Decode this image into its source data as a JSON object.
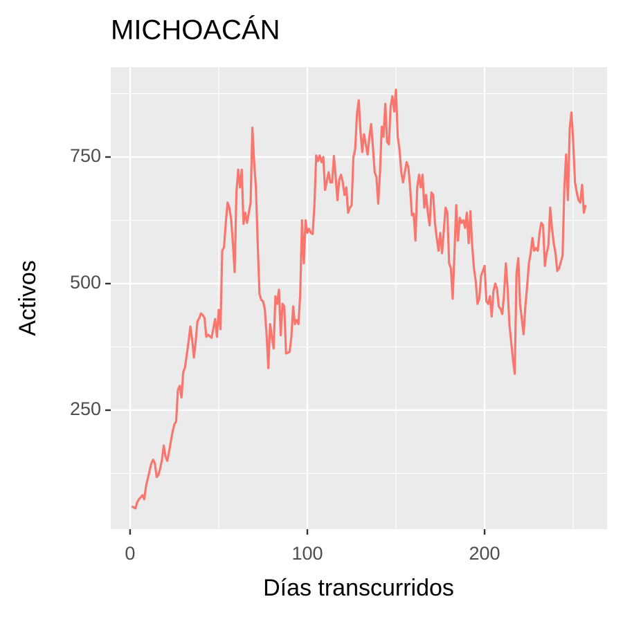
{
  "chart_data": {
    "type": "line",
    "title": "MICHOACÁN",
    "x_label": "Días transcurridos",
    "y_label": "Activos",
    "xlim": [
      -10.9,
      269.1
    ],
    "ylim": [
      15,
      927.6
    ],
    "xticks": [
      0,
      100,
      200
    ],
    "yticks": [
      250,
      500,
      750
    ],
    "x_minor_ticks": [
      50,
      150,
      250
    ],
    "y_minor_ticks": [
      125,
      375,
      625,
      875
    ],
    "grid": true,
    "x": [
      1,
      2,
      3,
      4,
      5,
      6,
      7,
      8,
      9,
      10,
      11,
      12,
      13,
      14,
      15,
      16,
      17,
      18,
      19,
      20,
      21,
      22,
      24,
      25,
      26,
      27,
      28,
      29,
      30,
      31,
      32,
      33,
      34,
      35,
      36,
      37,
      38,
      39,
      40,
      41,
      42,
      43,
      44,
      46,
      47,
      48,
      49,
      50,
      51,
      52,
      53,
      54,
      55,
      56,
      57,
      58,
      59,
      60,
      61,
      62,
      63,
      64,
      65,
      66,
      68,
      69,
      70,
      71,
      72,
      73,
      74,
      75,
      76,
      77,
      78,
      79,
      80,
      81,
      82,
      83,
      84,
      85,
      86,
      87,
      88,
      90,
      91,
      92,
      93,
      94,
      95,
      96,
      97,
      98,
      99,
      100,
      101,
      102,
      103,
      104,
      105,
      106,
      107,
      108,
      109,
      110,
      112,
      113,
      114,
      115,
      116,
      117,
      118,
      119,
      120,
      121,
      122,
      123,
      124,
      125,
      126,
      127,
      128,
      129,
      130,
      131,
      132,
      134,
      135,
      136,
      137,
      138,
      139,
      140,
      141,
      142,
      143,
      144,
      145,
      146,
      147,
      148,
      149,
      150,
      151,
      152,
      153,
      154,
      156,
      157,
      158,
      159,
      160,
      161,
      162,
      163,
      164,
      165,
      166,
      167,
      168,
      169,
      170,
      171,
      172,
      173,
      174,
      175,
      176,
      178,
      179,
      180,
      181,
      182,
      183,
      184,
      185,
      186,
      187,
      188,
      189,
      190,
      191,
      192,
      193,
      194,
      195,
      196,
      197,
      198,
      200,
      201,
      202,
      203,
      204,
      205,
      206,
      207,
      208,
      209,
      210,
      211,
      212,
      213,
      214,
      215,
      216,
      217,
      218,
      219,
      220,
      222,
      223,
      224,
      225,
      226,
      227,
      228,
      229,
      230,
      231,
      232,
      233,
      234,
      235,
      236,
      237,
      238,
      239,
      240,
      241,
      242,
      244,
      245,
      246,
      247,
      248,
      249,
      250,
      251,
      252,
      253,
      254,
      255,
      256,
      257
    ],
    "series": [
      {
        "name": "Activos",
        "color": "#F8766D",
        "values": [
          60,
          58,
          56,
          68,
          74,
          78,
          82,
          74,
          100,
          115,
          130,
          145,
          152,
          145,
          118,
          122,
          135,
          152,
          180,
          158,
          150,
          168,
          208,
          222,
          228,
          290,
          298,
          275,
          325,
          335,
          360,
          385,
          415,
          390,
          354,
          385,
          425,
          432,
          441,
          438,
          432,
          395,
          399,
          393,
          412,
          430,
          395,
          448,
          410,
          565,
          572,
          620,
          660,
          650,
          628,
          580,
          523,
          680,
          725,
          690,
          725,
          618,
          640,
          620,
          660,
          808,
          740,
          690,
          580,
          480,
          468,
          465,
          450,
          400,
          333,
          420,
          395,
          372,
          475,
          460,
          488,
          398,
          460,
          455,
          362,
          365,
          395,
          455,
          420,
          428,
          420,
          480,
          625,
          540,
          625,
          600,
          608,
          600,
          598,
          655,
          753,
          742,
          753,
          740,
          750,
          685,
          720,
          700,
          700,
          752,
          710,
          665,
          705,
          715,
          700,
          675,
          690,
          640,
          650,
          655,
          750,
          765,
          835,
          862,
          800,
          760,
          795,
          755,
          790,
          815,
          770,
          720,
          710,
          658,
          720,
          810,
          790,
          855,
          780,
          775,
          850,
          870,
          840,
          883,
          790,
          765,
          720,
          700,
          740,
          730,
          690,
          635,
          638,
          585,
          690,
          715,
          690,
          715,
          650,
          675,
          640,
          615,
          680,
          675,
          620,
          590,
          565,
          600,
          560,
          650,
          640,
          540,
          530,
          470,
          560,
          655,
          585,
          630,
          620,
          625,
          610,
          640,
          580,
          643,
          575,
          530,
          505,
          460,
          470,
          515,
          535,
          465,
          460,
          475,
          435,
          485,
          500,
          490,
          455,
          450,
          440,
          480,
          540,
          490,
          420,
          385,
          350,
          322,
          520,
          550,
          460,
          400,
          455,
          495,
          540,
          560,
          590,
          565,
          570,
          565,
          600,
          620,
          615,
          535,
          560,
          575,
          650,
          610,
          580,
          560,
          525,
          530,
          555,
          690,
          755,
          665,
          805,
          838,
          780,
          700,
          680,
          665,
          660,
          695,
          640,
          655
        ]
      }
    ]
  }
}
